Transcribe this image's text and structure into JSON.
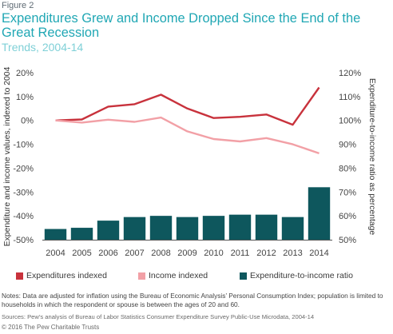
{
  "figure_label": "Figure 2",
  "title": "Expenditures Grew and Income Dropped Since the End of the Great Recession",
  "subtitle": "Trends, 2004-14",
  "notes": "Notes: Data are adjusted for inflation using the Bureau of Economic Analysis’ Personal Consumption Index; population is limited to households in which the respondent or spouse is between the ages of 20 and 60.",
  "sources": "Sources: Pew’s analysis of Bureau of Labor Statistics Consumer Expenditure Survey Public-Use Microdata, 2004-14",
  "copyright": "© 2016 The Pew Charitable Trusts",
  "chart_data": {
    "type": "bar+line",
    "categories": [
      "2004",
      "2005",
      "2006",
      "2007",
      "2008",
      "2009",
      "2010",
      "2011",
      "2012",
      "2013",
      "2014"
    ],
    "series": [
      {
        "name": "Expenditures indexed",
        "type": "line",
        "axis": "left",
        "color": "#c8323c",
        "values": [
          0,
          0.4,
          5.8,
          6.8,
          10.8,
          5.0,
          1.0,
          1.5,
          2.5,
          -1.8,
          13.8
        ]
      },
      {
        "name": "Income indexed",
        "type": "line",
        "axis": "left",
        "color": "#f2a0a6",
        "values": [
          0,
          -0.9,
          0.3,
          -0.6,
          1.2,
          -4.6,
          -7.8,
          -8.8,
          -7.4,
          -10.0,
          -13.8
        ]
      },
      {
        "name": "Expenditure-to-income ratio",
        "type": "bar",
        "axis": "right",
        "color": "#0e575d",
        "values": [
          54.5,
          55.0,
          58.0,
          59.5,
          60.0,
          59.5,
          60.0,
          60.5,
          60.5,
          59.5,
          72.0
        ]
      }
    ],
    "y_left": {
      "label": "Expenditure and income values, indexed to 2004",
      "ylim": [
        -50,
        20
      ],
      "ticks": [
        "20%",
        "10%",
        "0%",
        "-10%",
        "-20%",
        "-30%",
        "-40%",
        "-50%"
      ]
    },
    "y_right": {
      "label": "Expenditure-to-income ratio as percentage",
      "ylim": [
        50,
        120
      ],
      "ticks": [
        "120%",
        "110%",
        "100%",
        "90%",
        "80%",
        "70%",
        "60%",
        "50%"
      ]
    },
    "grid": false,
    "legend_position": "bottom"
  }
}
